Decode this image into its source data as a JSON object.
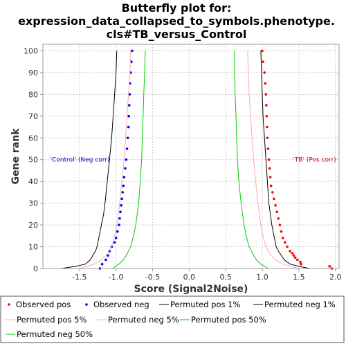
{
  "chart_data": {
    "type": "line",
    "title": [
      "Butterfly plot for:",
      "expression_data_collapsed_to_symbols.phenotype.",
      "cls#TB_versus_Control"
    ],
    "xlabel": "Score (Signal2Noise)",
    "ylabel": "Gene rank",
    "xlim": [
      -2.0,
      2.05
    ],
    "ylim": [
      0,
      103
    ],
    "xticks": [
      -1.5,
      -1.0,
      -0.5,
      0.0,
      0.5,
      1.0,
      1.5,
      2.0
    ],
    "xtick_labels": [
      "-1.5",
      "-1.0",
      "-0.5",
      "0.0",
      "0.5",
      "1.0",
      "1.5",
      "2.0"
    ],
    "yticks": [
      0,
      10,
      20,
      30,
      40,
      50,
      60,
      70,
      80,
      90,
      100
    ],
    "ytick_labels": [
      "0",
      "10",
      "20",
      "30",
      "40",
      "50",
      "60",
      "70",
      "80",
      "90",
      "100"
    ],
    "grid": true,
    "legend_placement": "bottom",
    "annotations": [
      {
        "text": "'Control' (Neg corr)",
        "color": "#0000cc",
        "x": -1.9,
        "y": 50
      },
      {
        "text": "'TB' (Pos corr)",
        "color": "#cc0000",
        "x": 1.42,
        "y": 50
      }
    ],
    "series": [
      {
        "name": "Observed pos",
        "kind": "points",
        "color": "#ff0000",
        "marker": "•",
        "y": [
          0,
          1,
          2,
          3,
          4,
          5,
          6,
          7,
          8,
          10,
          12,
          14,
          17,
          20,
          23,
          26,
          29,
          32,
          35,
          38,
          42,
          46,
          50,
          55,
          60,
          65,
          70,
          75,
          80,
          85,
          90,
          95,
          100
        ],
        "x": [
          1.95,
          1.92,
          1.53,
          1.52,
          1.48,
          1.45,
          1.43,
          1.41,
          1.38,
          1.34,
          1.31,
          1.28,
          1.26,
          1.24,
          1.22,
          1.2,
          1.18,
          1.16,
          1.14,
          1.12,
          1.11,
          1.1,
          1.09,
          1.08,
          1.07,
          1.065,
          1.06,
          1.055,
          1.05,
          1.04,
          1.03,
          1.01,
          1.0
        ]
      },
      {
        "name": "Observed neg",
        "kind": "points",
        "color": "#0000ff",
        "marker": "•",
        "y": [
          0,
          2,
          4,
          6,
          8,
          10,
          12,
          14,
          17,
          20,
          23,
          26,
          29,
          32,
          35,
          38,
          42,
          46,
          50,
          55,
          60,
          65,
          70,
          75,
          80,
          85,
          90,
          95,
          100
        ],
        "x": [
          -1.22,
          -1.19,
          -1.14,
          -1.11,
          -1.09,
          -1.06,
          -1.02,
          -1.0,
          -0.98,
          -0.96,
          -0.95,
          -0.94,
          -0.93,
          -0.92,
          -0.91,
          -0.9,
          -0.89,
          -0.875,
          -0.86,
          -0.85,
          -0.84,
          -0.83,
          -0.825,
          -0.82,
          -0.815,
          -0.81,
          -0.8,
          -0.79,
          -0.78
        ]
      },
      {
        "name": "Permuted pos 1%",
        "kind": "line",
        "color": "#000000",
        "y": [
          0,
          1,
          2,
          4,
          6,
          8,
          10,
          15,
          20,
          25,
          30,
          40,
          50,
          60,
          70,
          80,
          90,
          100
        ],
        "x": [
          1.65,
          1.5,
          1.38,
          1.3,
          1.26,
          1.22,
          1.19,
          1.16,
          1.13,
          1.11,
          1.09,
          1.07,
          1.05,
          1.03,
          1.01,
          1.0,
          0.99,
          0.98
        ]
      },
      {
        "name": "Permuted neg 1%",
        "kind": "line",
        "color": "#000000",
        "y": [
          0,
          1,
          2,
          4,
          6,
          8,
          10,
          15,
          20,
          25,
          30,
          40,
          50,
          60,
          70,
          80,
          90,
          100
        ],
        "x": [
          -1.75,
          -1.55,
          -1.42,
          -1.35,
          -1.32,
          -1.28,
          -1.26,
          -1.23,
          -1.2,
          -1.17,
          -1.15,
          -1.12,
          -1.09,
          -1.06,
          -1.04,
          -1.02,
          -1.0,
          -0.99
        ]
      },
      {
        "name": "Permuted pos 5%",
        "kind": "line",
        "color": "#ffaaaa",
        "y": [
          0,
          2,
          4,
          6,
          8,
          10,
          15,
          20,
          30,
          40,
          50,
          60,
          70,
          80,
          90,
          100
        ],
        "x": [
          1.5,
          1.28,
          1.18,
          1.12,
          1.08,
          1.05,
          1.01,
          0.98,
          0.94,
          0.91,
          0.88,
          0.86,
          0.84,
          0.82,
          0.81,
          0.8
        ]
      },
      {
        "name": "Permuted neg 5%",
        "kind": "line",
        "color": "#ffaaaa",
        "y": [
          0,
          2,
          4,
          6,
          8,
          10,
          15,
          20,
          30,
          40,
          50,
          60,
          70,
          80,
          90,
          100
        ],
        "x": [
          -1.5,
          -1.3,
          -1.2,
          -1.14,
          -1.1,
          -1.06,
          -1.02,
          -0.99,
          -0.95,
          -0.92,
          -0.89,
          -0.87,
          -0.85,
          -0.83,
          -0.81,
          -0.8
        ]
      },
      {
        "name": "Permuted pos 50%",
        "kind": "line",
        "color": "#00cc00",
        "y": [
          0,
          2,
          4,
          6,
          8,
          10,
          15,
          20,
          30,
          40,
          50,
          60,
          70,
          80,
          90,
          100
        ],
        "x": [
          1.08,
          0.98,
          0.92,
          0.88,
          0.85,
          0.82,
          0.78,
          0.75,
          0.71,
          0.68,
          0.66,
          0.65,
          0.64,
          0.63,
          0.62,
          0.62
        ]
      },
      {
        "name": "Permuted neg 50%",
        "kind": "line",
        "color": "#00cc00",
        "y": [
          0,
          2,
          4,
          6,
          8,
          10,
          15,
          20,
          30,
          40,
          50,
          60,
          70,
          80,
          90,
          100
        ],
        "x": [
          -1.05,
          -0.96,
          -0.9,
          -0.86,
          -0.83,
          -0.8,
          -0.76,
          -0.73,
          -0.69,
          -0.67,
          -0.65,
          -0.64,
          -0.63,
          -0.62,
          -0.61,
          -0.6
        ]
      }
    ]
  }
}
